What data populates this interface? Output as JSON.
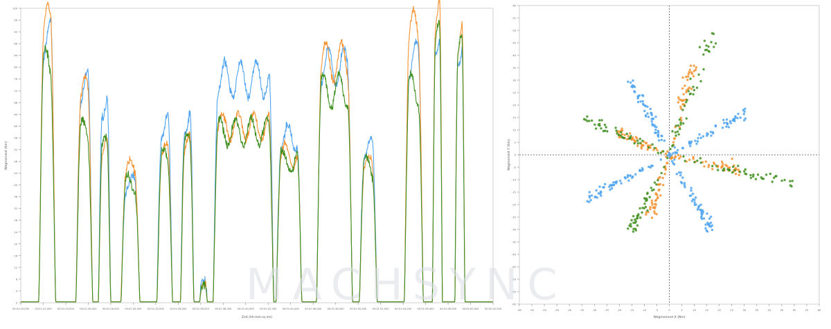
{
  "colors": {
    "series1": "#4da3f0",
    "series2": "#f5922f",
    "series3": "#3f8f1f",
    "axis": "#888888",
    "guide": "#777777",
    "watermark_tint": "#d9dde4"
  },
  "watermark": {
    "text": "MACHSYNC"
  },
  "chart_data": [
    {
      "type": "line",
      "title": "",
      "xlabel": "Zeit (hh:mm:ss,ms)",
      "ylabel": "Wegmoment (Nm)",
      "ylim": [
        0,
        100
      ],
      "grid": false,
      "legend": "none",
      "x_tick_labels": [
        "00:01:20,000",
        "00:01:22,000",
        "00:01:24,000",
        "00:01:26,000",
        "00:01:28,000",
        "00:01:30,000",
        "00:01:32,000",
        "00:01:34,000",
        "00:01:36,000",
        "00:01:38,000",
        "00:01:40,000",
        "00:01:42,000",
        "00:01:44,000",
        "00:01:46,000",
        "00:01:48,000",
        "00:01:50,000",
        "00:01:52,000",
        "00:01:54,000",
        "00:01:56,000",
        "00:01:58,000",
        "00:02:00,000",
        "00:02:02,000"
      ],
      "y_ticks": [
        0,
        4,
        8,
        12,
        16,
        20,
        24,
        28,
        32,
        36,
        40,
        44,
        48,
        52,
        56,
        60,
        64,
        68,
        72,
        76,
        80,
        84,
        88,
        92,
        96,
        100
      ],
      "x_range_index": [
        0,
        21
      ],
      "pulses": [
        {
          "start": 0.8,
          "end": 1.55,
          "peaks": [
            89,
            94,
            80
          ]
        },
        {
          "start": 2.45,
          "end": 3.2,
          "peaks": [
            73,
            71,
            58
          ]
        },
        {
          "start": 3.45,
          "end": 4.0,
          "peaks": [
            68,
            52,
            52
          ]
        },
        {
          "start": 4.45,
          "end": 5.3,
          "peaks": [
            40,
            45,
            40
          ]
        },
        {
          "start": 6.05,
          "end": 6.75,
          "peaks": [
            60,
            50,
            48
          ]
        },
        {
          "start": 7.1,
          "end": 7.7,
          "peaks": [
            62,
            53,
            53
          ]
        },
        {
          "start": 7.95,
          "end": 8.3,
          "peaks": [
            8,
            6,
            6
          ]
        },
        {
          "start": 8.55,
          "end": 11.25,
          "peaks": [
            76,
            60,
            58
          ]
        },
        {
          "start": 11.35,
          "end": 12.5,
          "peaks": [
            56,
            50,
            48
          ]
        },
        {
          "start": 13.15,
          "end": 14.75,
          "peaks": [
            80,
            82,
            72
          ]
        },
        {
          "start": 15.05,
          "end": 15.85,
          "peaks": [
            52,
            46,
            46
          ]
        },
        {
          "start": 17.05,
          "end": 17.9,
          "peaks": [
            82,
            92,
            72
          ]
        },
        {
          "start": 18.3,
          "end": 18.75,
          "peaks": [
            92,
            99,
            88
          ]
        },
        {
          "start": 19.3,
          "end": 19.75,
          "peaks": [
            88,
            90,
            84
          ]
        }
      ]
    },
    {
      "type": "scatter",
      "title": "",
      "xlabel": "Wegmoment X (Nm)",
      "ylabel": "Wegmoment Y (Nm)",
      "xlim": [
        -60,
        60
      ],
      "ylim": [
        -60,
        60
      ],
      "grid": false,
      "legend": "none",
      "x_ticks": [
        -60,
        -55,
        -50,
        -45,
        -40,
        -35,
        -30,
        -25,
        -20,
        -15,
        -10,
        -5,
        0,
        5,
        10,
        15,
        20,
        25,
        30,
        35,
        40,
        45,
        50,
        55,
        60
      ],
      "y_ticks": [
        -60,
        -55,
        -50,
        -45,
        -40,
        -35,
        -30,
        -25,
        -20,
        -15,
        -10,
        -5,
        0,
        5,
        10,
        15,
        20,
        25,
        30,
        35,
        40,
        45,
        50,
        55,
        60
      ],
      "rays": [
        {
          "series": 1,
          "end": [
            -16,
            31
          ],
          "count": 60
        },
        {
          "series": 1,
          "end": [
            31,
            17
          ],
          "count": 60
        },
        {
          "series": 1,
          "end": [
            -33,
            -18
          ],
          "count": 55
        },
        {
          "series": 1,
          "end": [
            18,
            -32
          ],
          "count": 60
        },
        {
          "series": 2,
          "end": [
            9,
            36
          ],
          "count": 45
        },
        {
          "series": 2,
          "end": [
            -21,
            9
          ],
          "count": 45
        },
        {
          "series": 2,
          "end": [
            28,
            -6
          ],
          "count": 45
        },
        {
          "series": 2,
          "end": [
            -8,
            -25
          ],
          "count": 45
        },
        {
          "series": 3,
          "end": [
            17,
            49
          ],
          "count": 45
        },
        {
          "series": 3,
          "end": [
            -34,
            14
          ],
          "count": 45
        },
        {
          "series": 3,
          "end": [
            51,
            -12
          ],
          "count": 45
        },
        {
          "series": 3,
          "end": [
            -16,
            -32
          ],
          "count": 45
        }
      ]
    }
  ]
}
